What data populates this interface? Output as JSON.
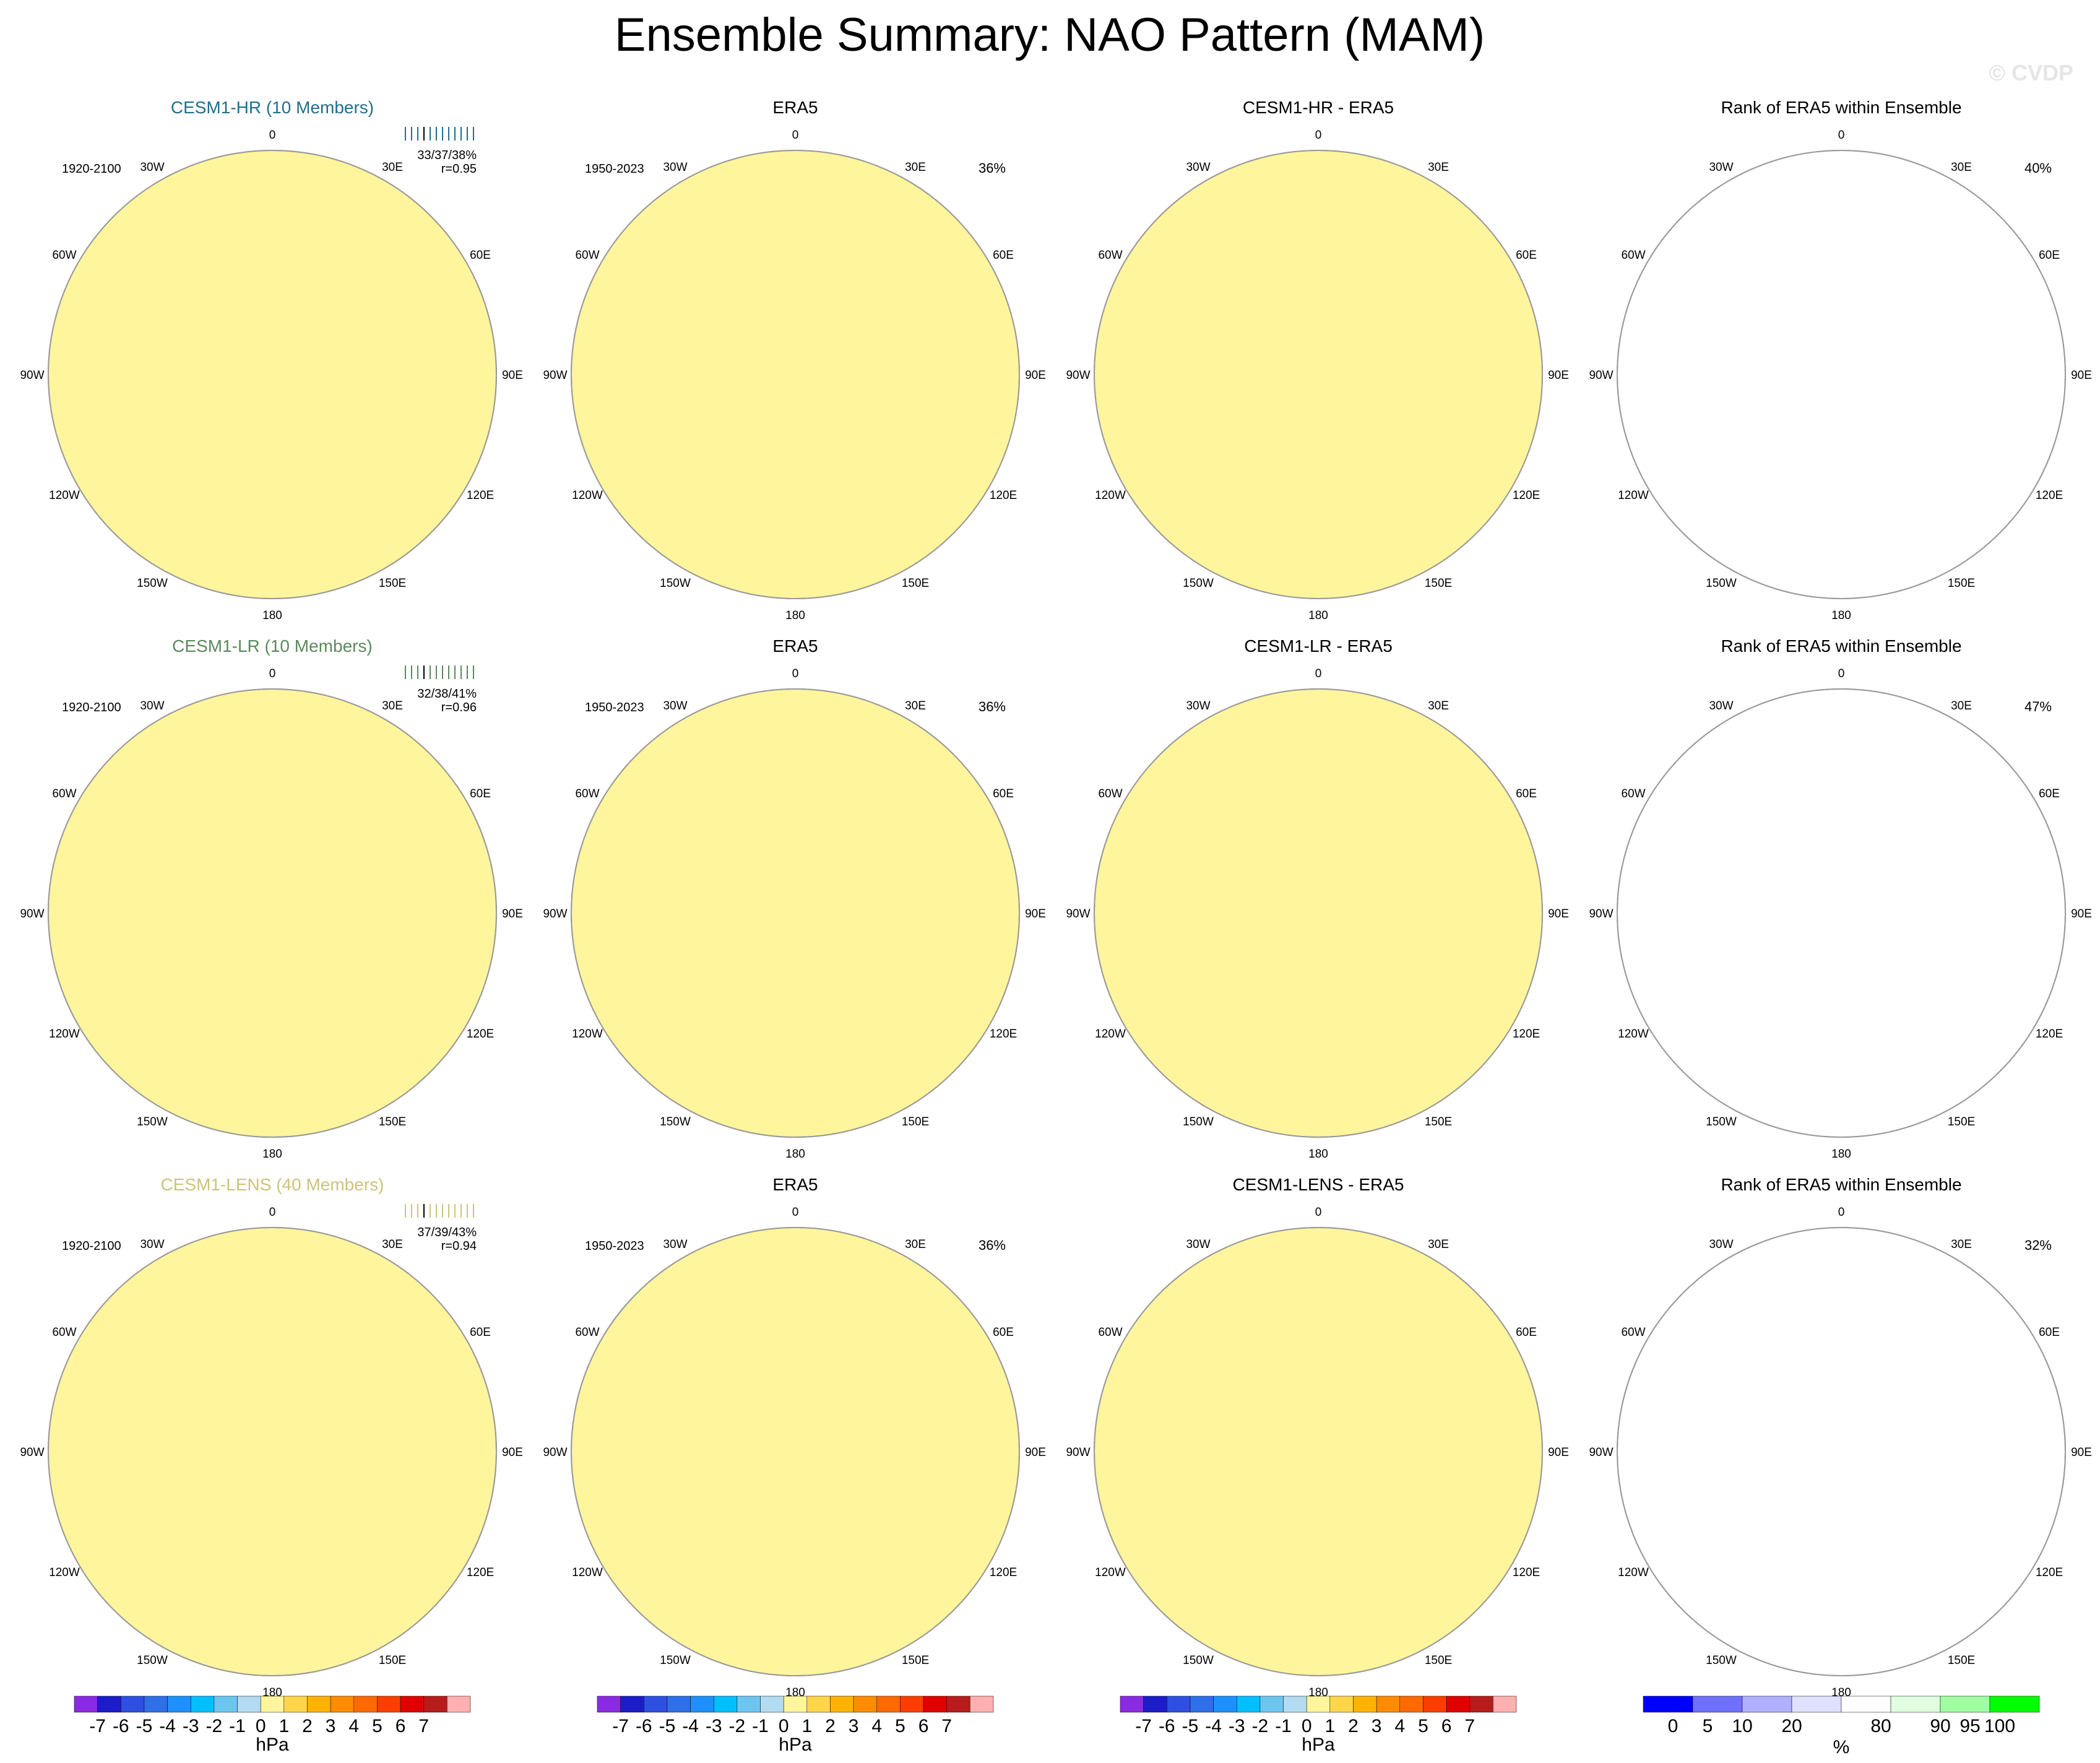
{
  "title": "Ensemble Summary: NAO Pattern (MAM)",
  "watermark": "© CVDP",
  "lon_labels": [
    "180",
    "150E",
    "120E",
    "90E",
    "60E",
    "30E",
    "0",
    "30W",
    "60W",
    "90W",
    "120W",
    "150W"
  ],
  "colors": {
    "land_outline": "#666666",
    "ocean_circle": "#9a9a9a",
    "neg7": "#8a2be2",
    "neg6": "#1c1cc8",
    "neg5": "#2f4fe0",
    "neg4": "#2f6fe8",
    "neg3": "#1e90ff",
    "neg2": "#00bfff",
    "neg1": "#6cc6f0",
    "neg0": "#b3dcf2",
    "pos0": "#fff59d",
    "pos1": "#ffd54a",
    "pos2": "#ffb300",
    "pos3": "#ff8c00",
    "pos4": "#ff6a00",
    "pos5": "#ff3d00",
    "pos6": "#e00000",
    "pos7": "#b71c1c",
    "pos8": "#ffb0b0",
    "rank_blue": "#0000ff",
    "rank_lightblue": "#c9c9ff",
    "rank_white": "#ffffff",
    "rank_green": "#00ff00",
    "rank_palegreen": "#ccffcc"
  },
  "rows": [
    {
      "model_title": "CESM1-HR (10 Members)",
      "model_color": "#1f6f8b",
      "model_years": "1920-2100",
      "model_stats": "33/37/38%",
      "model_r": "r=0.95",
      "obs_title": "ERA5",
      "obs_years": "1950-2023",
      "obs_pct": "36%",
      "diff_title": "CESM1-HR - ERA5",
      "rank_title": "Rank of ERA5 within Ensemble",
      "rank_pct": "40%"
    },
    {
      "model_title": "CESM1-LR (10 Members)",
      "model_color": "#5b8a5b",
      "model_years": "1920-2100",
      "model_stats": "32/38/41%",
      "model_r": "r=0.96",
      "obs_title": "ERA5",
      "obs_years": "1950-2023",
      "obs_pct": "36%",
      "diff_title": "CESM1-LR - ERA5",
      "rank_title": "Rank of ERA5 within Ensemble",
      "rank_pct": "47%"
    },
    {
      "model_title": "CESM1-LENS (40 Members)",
      "model_color": "#cfc27a",
      "model_years": "1920-2100",
      "model_stats": "37/39/43%",
      "model_r": "r=0.94",
      "obs_title": "ERA5",
      "obs_years": "1950-2023",
      "obs_pct": "36%",
      "diff_title": "CESM1-LENS - ERA5",
      "rank_title": "Rank of ERA5 within Ensemble",
      "rank_pct": "32%"
    }
  ],
  "colorbar_hpa": {
    "labels": [
      "-7",
      "-6",
      "-5",
      "-4",
      "-3",
      "-2",
      "-1",
      "0",
      "1",
      "2",
      "3",
      "4",
      "5",
      "6",
      "7"
    ],
    "units": "hPa"
  },
  "colorbar_rank": {
    "labels": [
      "0",
      "5",
      "10",
      "20",
      "80",
      "90",
      "95",
      "100"
    ],
    "units": "%"
  }
}
